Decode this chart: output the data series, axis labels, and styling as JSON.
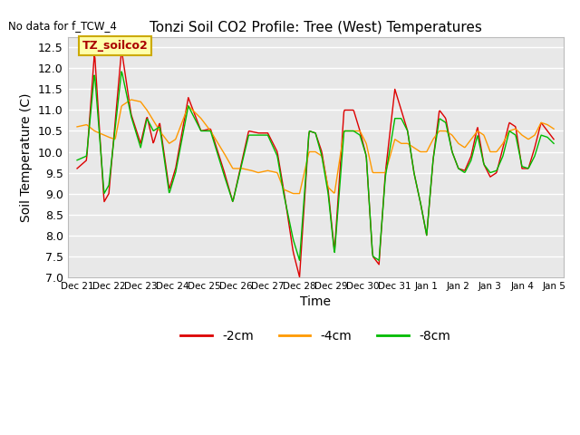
{
  "title": "Tonzi Soil CO2 Profile: Tree (West) Temperatures",
  "no_data_text": "No data for f_TCW_4",
  "xlabel": "Time",
  "ylabel": "Soil Temperature (C)",
  "ylim": [
    7.0,
    12.75
  ],
  "yticks": [
    7.0,
    7.5,
    8.0,
    8.5,
    9.0,
    9.5,
    10.0,
    10.5,
    11.0,
    11.5,
    12.0,
    12.5
  ],
  "legend_label": "TZ_soilco2",
  "line_labels": [
    "-2cm",
    "-4cm",
    "-8cm"
  ],
  "line_colors": [
    "#dd0000",
    "#ff9900",
    "#00bb00"
  ],
  "background_color": "#ffffff",
  "plot_bg_color": "#e8e8e8",
  "grid_color": "#ffffff",
  "x_tick_labels": [
    "Dec 21",
    "Dec 22",
    "Dec 23",
    "Dec 24",
    "Dec 25",
    "Dec 26",
    "Dec 27",
    "Dec 28",
    "Dec 29",
    "Dec 30",
    "Dec 31",
    "Jan 1",
    "Jan 2",
    "Jan 3",
    "Jan 4",
    "Jan 5"
  ]
}
